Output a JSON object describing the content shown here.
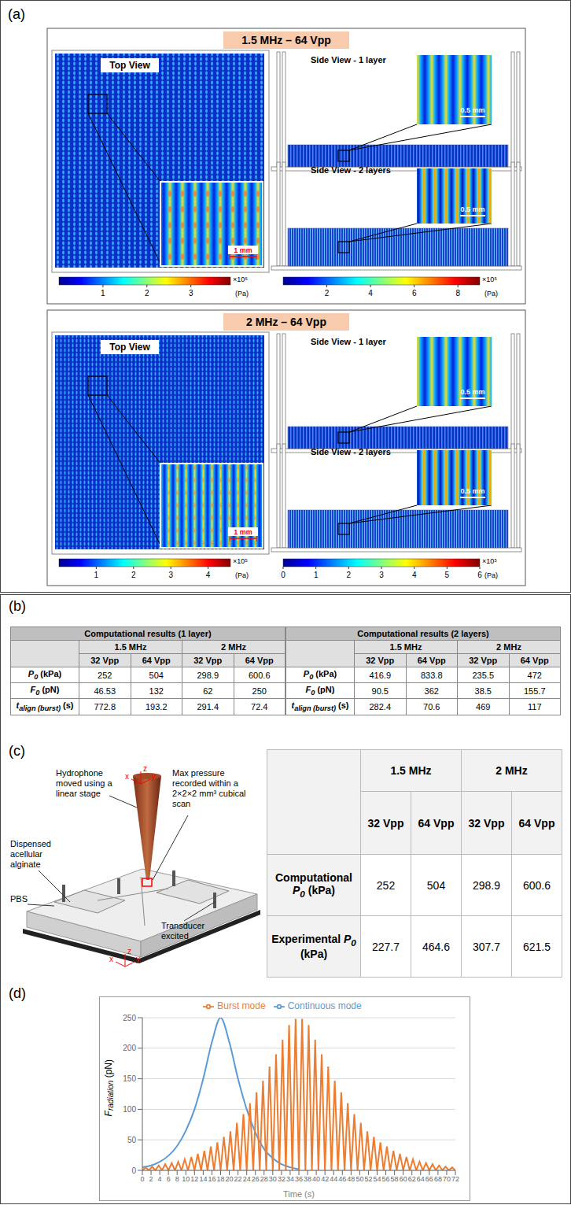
{
  "panel_a": {
    "label": "(a)",
    "cases": [
      {
        "title": "1.5 MHz – 64 Vpp",
        "top_view": {
          "label": "Top View",
          "scale_bar": "1 mm",
          "colorbar": {
            "range": [
              0,
              3.9
            ],
            "ticks": [
              1,
              2,
              3
            ],
            "multiplier": "×10⁵",
            "unit": "(Pa)"
          }
        },
        "side_views": [
          {
            "label": "Side View - 1 layer",
            "scale_bar": "0.5 mm"
          },
          {
            "label": "Side View - 2 layers",
            "scale_bar": "0.5 mm"
          }
        ],
        "side_colorbar": {
          "range": [
            0,
            9
          ],
          "ticks": [
            2,
            4,
            6,
            8
          ],
          "multiplier": "×10⁵",
          "unit": "(Pa)"
        }
      },
      {
        "title": "2 MHz – 64 Vpp",
        "top_view": {
          "label": "Top View",
          "scale_bar": "1 mm",
          "colorbar": {
            "range": [
              0,
              4.6
            ],
            "ticks": [
              1,
              2,
              3,
              4
            ],
            "multiplier": "×10⁵",
            "unit": "(Pa)"
          }
        },
        "side_views": [
          {
            "label": "Side View - 1 layer",
            "scale_bar": "0.5 mm"
          },
          {
            "label": "Side View - 2 layers",
            "scale_bar": "0.5 mm"
          }
        ],
        "side_colorbar": {
          "range": [
            0,
            6
          ],
          "ticks": [
            0,
            1,
            2,
            3,
            4,
            5,
            6
          ],
          "multiplier": "×10⁵",
          "unit": "(Pa)"
        }
      }
    ]
  },
  "panel_b": {
    "label": "(b)",
    "tables": [
      {
        "title": "Computational results (1 layer)",
        "frequencies": [
          "1.5 MHz",
          "2 MHz"
        ],
        "voltages": [
          "32 Vpp",
          "64 Vpp",
          "32 Vpp",
          "64 Vpp"
        ],
        "rows": [
          {
            "label": {
              "symbol": "P",
              "subscript": "0",
              "unit": "(kPa)"
            },
            "values": [
              252,
              504,
              298.9,
              600.6
            ]
          },
          {
            "label": {
              "symbol": "F",
              "subscript": "0",
              "unit": "(pN)"
            },
            "values": [
              46.53,
              132,
              62,
              250
            ]
          },
          {
            "label": {
              "symbol": "t",
              "subscript": "align (burst)",
              "unit": "(s)"
            },
            "values": [
              772.8,
              193.2,
              291.4,
              72.4
            ]
          }
        ]
      },
      {
        "title": "Computational results (2 layers)",
        "frequencies": [
          "1.5 MHz",
          "2 MHz"
        ],
        "voltages": [
          "32 Vpp",
          "64 Vpp",
          "32 Vpp",
          "64 Vpp"
        ],
        "rows": [
          {
            "label": {
              "symbol": "P",
              "subscript": "0",
              "unit": "(kPa)"
            },
            "values": [
              416.9,
              833.8,
              235.5,
              472
            ]
          },
          {
            "label": {
              "symbol": "F",
              "subscript": "0",
              "unit": "(pN)"
            },
            "values": [
              90.5,
              362,
              38.5,
              155.7
            ]
          },
          {
            "label": {
              "symbol": "t",
              "subscript": "align (burst)",
              "unit": "(s)"
            },
            "values": [
              282.4,
              70.6,
              469,
              117
            ]
          }
        ]
      }
    ]
  },
  "panel_c": {
    "label": "(c)",
    "diagram": {
      "labels": {
        "hydrophone": "Hydrophone moved using a linear stage",
        "scan": "Max pressure recorded within a 2×2×2 mm³ cubical scan",
        "alginate": "Dispensed acellular alginate",
        "pbs": "PBS",
        "transducer": "Transducer excited"
      },
      "axes": [
        "x",
        "y",
        "z"
      ]
    },
    "table": {
      "frequencies": [
        "1.5 MHz",
        "2 MHz"
      ],
      "voltages": [
        "32 Vpp",
        "64 Vpp",
        "32 Vpp",
        "64 Vpp"
      ],
      "rows": [
        {
          "label": {
            "prefix": "Computational",
            "symbol": "P",
            "subscript": "0",
            "unit": "(kPa)"
          },
          "values": [
            252,
            504,
            298.9,
            600.6
          ]
        },
        {
          "label": {
            "prefix": "Experimental",
            "symbol": "P",
            "subscript": "0",
            "unit": "(kPa)"
          },
          "values": [
            227.7,
            464.6,
            307.7,
            621.5
          ]
        }
      ]
    }
  },
  "panel_d": {
    "label": "(d)"
  },
  "chart_data": {
    "type": "line",
    "x_label": "Time (s)",
    "y_label": {
      "symbol": "F",
      "subscript": "radiation",
      "unit": "(pN)"
    },
    "xlim": [
      0,
      72
    ],
    "xticks": [
      0,
      2,
      4,
      6,
      8,
      10,
      12,
      14,
      16,
      18,
      20,
      22,
      24,
      26,
      28,
      30,
      32,
      34,
      36,
      38,
      40,
      42,
      44,
      46,
      48,
      50,
      52,
      54,
      56,
      58,
      60,
      62,
      64,
      66,
      68,
      70,
      72
    ],
    "ylim": [
      0,
      250
    ],
    "yticks": [
      0,
      50,
      100,
      150,
      200,
      250
    ],
    "grid": true,
    "legend": "top",
    "series": [
      {
        "name": "Continuous mode",
        "color": "#5b9bd5",
        "line_style": "smooth",
        "x": [
          0,
          2,
          4,
          6,
          8,
          10,
          12,
          14,
          16,
          18,
          20,
          22,
          24,
          26,
          28,
          30,
          32,
          34,
          36
        ],
        "values": [
          5,
          8,
          14,
          24,
          40,
          65,
          100,
          150,
          210,
          250,
          210,
          150,
          100,
          62,
          35,
          20,
          10,
          5,
          2
        ]
      },
      {
        "name": "Burst mode",
        "color": "#ed7d31",
        "line_style": "solid",
        "x": [
          0,
          0.75,
          1.5,
          2.25,
          3,
          3.75,
          4.5,
          5.25,
          6,
          6.75,
          7.5,
          8.25,
          9,
          9.75,
          10.5,
          11.25,
          12,
          12.75,
          13.5,
          14.25,
          15,
          15.75,
          16.5,
          17.25,
          18,
          18.75,
          19.5,
          20.25,
          21,
          21.75,
          22.5,
          23.25,
          24,
          24.75,
          25.5,
          26.25,
          27,
          27.75,
          28.5,
          29.25,
          30,
          30.75,
          31.5,
          32.25,
          33,
          33.75,
          34.5,
          35.25,
          36,
          36.75,
          37.5,
          38.25,
          39,
          39.75,
          40.5,
          41.25,
          42,
          42.75,
          43.5,
          44.25,
          45,
          45.75,
          46.5,
          47.25,
          48,
          48.75,
          49.5,
          50.25,
          51,
          51.75,
          52.5,
          53.25,
          54,
          54.75,
          55.5,
          56.25,
          57,
          57.75,
          58.5,
          59.25,
          60,
          60.75,
          61.5,
          62.25,
          63,
          63.75,
          64.5,
          65.25,
          66,
          66.75,
          67.5,
          68.25,
          69,
          69.75,
          70.5,
          71.25,
          72
        ],
        "values": [
          0,
          5,
          0,
          6,
          0,
          8,
          0,
          10,
          0,
          12,
          0,
          14,
          0,
          18,
          0,
          22,
          0,
          27,
          0,
          32,
          0,
          39,
          0,
          46,
          0,
          55,
          0,
          64,
          0,
          78,
          0,
          92,
          0,
          110,
          0,
          128,
          0,
          147,
          0,
          170,
          0,
          190,
          0,
          214,
          0,
          238,
          0,
          248,
          0,
          248,
          0,
          238,
          0,
          214,
          0,
          190,
          0,
          170,
          0,
          147,
          0,
          128,
          0,
          110,
          0,
          92,
          0,
          78,
          0,
          64,
          0,
          55,
          0,
          46,
          0,
          39,
          0,
          32,
          0,
          27,
          0,
          22,
          0,
          18,
          0,
          14,
          0,
          12,
          0,
          10,
          0,
          8,
          0,
          6,
          0,
          5,
          0
        ]
      }
    ]
  }
}
